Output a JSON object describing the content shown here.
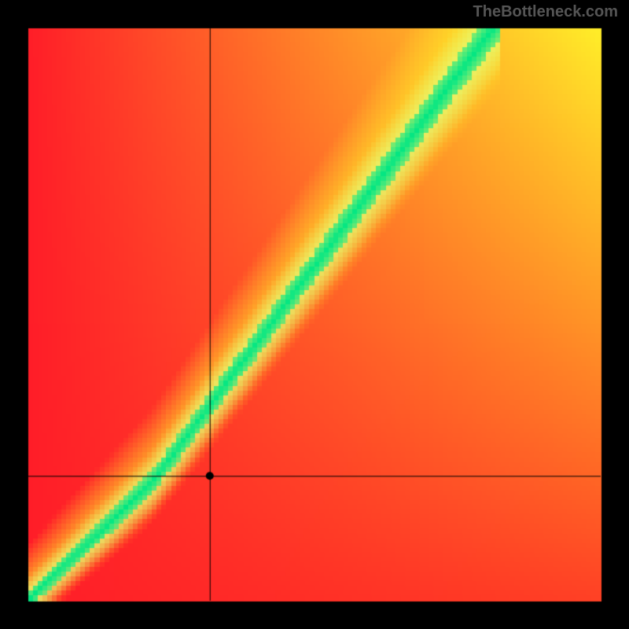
{
  "watermark": "TheBottleneck.com",
  "canvas": {
    "full_size": 800,
    "plot_margin": 36,
    "grid_cells": 120,
    "background_color": "#000000"
  },
  "colors": {
    "red": {
      "r": 255,
      "g": 29,
      "b": 40
    },
    "orange": {
      "r": 255,
      "g": 130,
      "b": 30
    },
    "yellow": {
      "r": 255,
      "g": 238,
      "b": 40
    },
    "pale": {
      "r": 220,
      "g": 255,
      "b": 140
    },
    "green": {
      "r": 0,
      "g": 230,
      "b": 130
    }
  },
  "curve": {
    "break_u": 0.22,
    "low_slope": 0.95,
    "low_yint": 0.0,
    "hi_y_at_break": 0.21,
    "hi_y_at_1": 1.25,
    "green_halfwidth": 0.025,
    "yellow_halfwidth": 0.075,
    "pale_halfwidth": 0.045
  },
  "crosshair": {
    "u": 0.317,
    "v": 0.218,
    "line_color": "#000000",
    "line_width": 1,
    "dot_radius": 5,
    "dot_color": "#000000"
  }
}
